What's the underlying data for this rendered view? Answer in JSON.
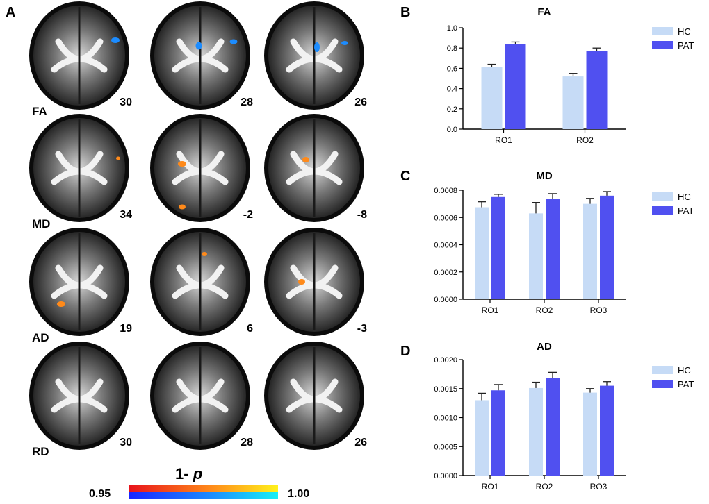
{
  "panel_letters": {
    "a": "A",
    "b": "B",
    "c": "C",
    "d": "D"
  },
  "brain_grid": {
    "rows": [
      {
        "metric": "FA",
        "slices": [
          "30",
          "28",
          "26"
        ]
      },
      {
        "metric": "MD",
        "slices": [
          "34",
          "-2",
          "-8"
        ]
      },
      {
        "metric": "AD",
        "slices": [
          "19",
          "6",
          "-3"
        ]
      },
      {
        "metric": "RD",
        "slices": [
          "30",
          "28",
          "26"
        ]
      }
    ]
  },
  "colorbar": {
    "title_prefix": "1- ",
    "title_var": "p",
    "min": "0.95",
    "max": "1.00",
    "warm_start": "#e8131b",
    "warm_end": "#fff21c",
    "cool_start": "#1a25ff",
    "cool_end": "#19f0f5"
  },
  "colors": {
    "HC": "#c6dbf6",
    "PAT": "#5050f0"
  },
  "chart_data": [
    {
      "type": "bar",
      "title": "FA",
      "categories": [
        "RO1",
        "RO2"
      ],
      "ylim": [
        0,
        1.0
      ],
      "yticks": [
        "0.0",
        "0.2",
        "0.4",
        "0.6",
        "0.8",
        "1.0"
      ],
      "series": [
        {
          "name": "HC",
          "values": [
            0.61,
            0.52
          ],
          "errors": [
            0.03,
            0.03
          ]
        },
        {
          "name": "PAT",
          "values": [
            0.84,
            0.77
          ],
          "errors": [
            0.02,
            0.03
          ]
        }
      ]
    },
    {
      "type": "bar",
      "title": "MD",
      "categories": [
        "RO1",
        "RO2",
        "RO3"
      ],
      "ylim": [
        0,
        0.0008
      ],
      "yticks": [
        "0.0000",
        "0.0002",
        "0.0004",
        "0.0006",
        "0.0008"
      ],
      "series": [
        {
          "name": "HC",
          "values": [
            0.000675,
            0.00063,
            0.0007
          ],
          "errors": [
            4e-05,
            8e-05,
            4e-05
          ]
        },
        {
          "name": "PAT",
          "values": [
            0.00075,
            0.000735,
            0.00076
          ],
          "errors": [
            2e-05,
            4e-05,
            3e-05
          ]
        }
      ]
    },
    {
      "type": "bar",
      "title": "AD",
      "categories": [
        "RO1",
        "RO2",
        "RO3"
      ],
      "ylim": [
        0,
        0.002
      ],
      "yticks": [
        "0.0000",
        "0.0005",
        "0.0010",
        "0.0015",
        "0.0020"
      ],
      "series": [
        {
          "name": "HC",
          "values": [
            0.0013,
            0.00151,
            0.00143
          ],
          "errors": [
            0.00012,
            0.0001,
            7e-05
          ]
        },
        {
          "name": "PAT",
          "values": [
            0.00147,
            0.00168,
            0.00155
          ],
          "errors": [
            0.0001,
            0.0001,
            7e-05
          ]
        }
      ]
    }
  ]
}
